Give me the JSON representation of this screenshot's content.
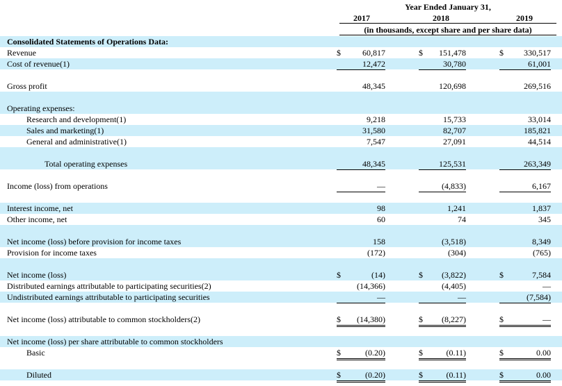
{
  "header": {
    "period": "Year Ended January 31,",
    "years": [
      "2017",
      "2018",
      "2019"
    ],
    "units": "(in thousands, except share and per share data)"
  },
  "rows": [
    {
      "label": "Consolidated Statements of Operations Data:",
      "style": "bold",
      "shade": true
    },
    {
      "label": "Revenue",
      "values": [
        "60,817",
        "151,478",
        "330,517"
      ],
      "currency": true
    },
    {
      "label": "Cost of revenue(1)",
      "values": [
        "12,472",
        "30,780",
        "61,001"
      ],
      "underline": "single",
      "shade": true
    },
    {
      "gap": true
    },
    {
      "label": "Gross profit",
      "values": [
        "48,345",
        "120,698",
        "269,516"
      ],
      "underline": "single"
    },
    {
      "gap": true,
      "shade": true
    },
    {
      "label": "Operating expenses:",
      "shade": true
    },
    {
      "label": "Research and development(1)",
      "indent": 1,
      "values": [
        "9,218",
        "15,733",
        "33,014"
      ]
    },
    {
      "label": "Sales and marketing(1)",
      "indent": 1,
      "values": [
        "31,580",
        "82,707",
        "185,821"
      ],
      "shade": true
    },
    {
      "label": "General and administrative(1)",
      "indent": 1,
      "values": [
        "7,547",
        "27,091",
        "44,514"
      ],
      "underline": "single"
    },
    {
      "gap": true,
      "shade": true
    },
    {
      "label": "Total operating expenses",
      "indent": 2,
      "values": [
        "48,345",
        "125,531",
        "263,349"
      ],
      "underline": "single",
      "shade": true
    },
    {
      "gap": true
    },
    {
      "label": "Income (loss) from operations",
      "values": [
        "—",
        "(4,833)",
        "6,167"
      ],
      "underline": "single"
    },
    {
      "gap": true
    },
    {
      "label": "Interest income, net",
      "values": [
        "98",
        "1,241",
        "1,837"
      ],
      "shade": true
    },
    {
      "label": "Other income, net",
      "values": [
        "60",
        "74",
        "345"
      ],
      "underline": "single"
    },
    {
      "gap": true,
      "shade": true
    },
    {
      "label": "Net income (loss) before provision for income taxes",
      "values": [
        "158",
        "(3,518)",
        "8,349"
      ],
      "shade": true
    },
    {
      "label": "Provision for income taxes",
      "values": [
        "(172)",
        "(304)",
        "(765)"
      ],
      "underline": "single"
    },
    {
      "gap": true,
      "shade": true
    },
    {
      "label": "Net income (loss)",
      "values": [
        "(14)",
        "(3,822)",
        "7,584"
      ],
      "currency": true,
      "shade": true
    },
    {
      "label": "Distributed earnings attributable to participating securities(2)",
      "values": [
        "(14,366)",
        "(4,405)",
        "—"
      ]
    },
    {
      "label": "Undistributed earnings attributable to participating securities",
      "values": [
        "—",
        "—",
        "(7,584)"
      ],
      "underline": "single",
      "shade": true
    },
    {
      "gap": true
    },
    {
      "label": "Net income (loss) attributable to common stockholders(2)",
      "values": [
        "(14,380)",
        "(8,227)",
        "—"
      ],
      "currency": true,
      "underline": "double"
    },
    {
      "gap": true
    },
    {
      "label": "Net income (loss) per share attributable to common stockholders",
      "shade": true
    },
    {
      "label": "Basic",
      "indent": 1,
      "values": [
        "(0.20)",
        "(0.11)",
        "0.00"
      ],
      "currency": true,
      "underline": "double"
    },
    {
      "gap": true
    },
    {
      "label": "Diluted",
      "indent": 1,
      "values": [
        "(0.20)",
        "(0.11)",
        "0.00"
      ],
      "currency": true,
      "underline": "double",
      "shade": true
    }
  ],
  "currency_symbol": "$"
}
